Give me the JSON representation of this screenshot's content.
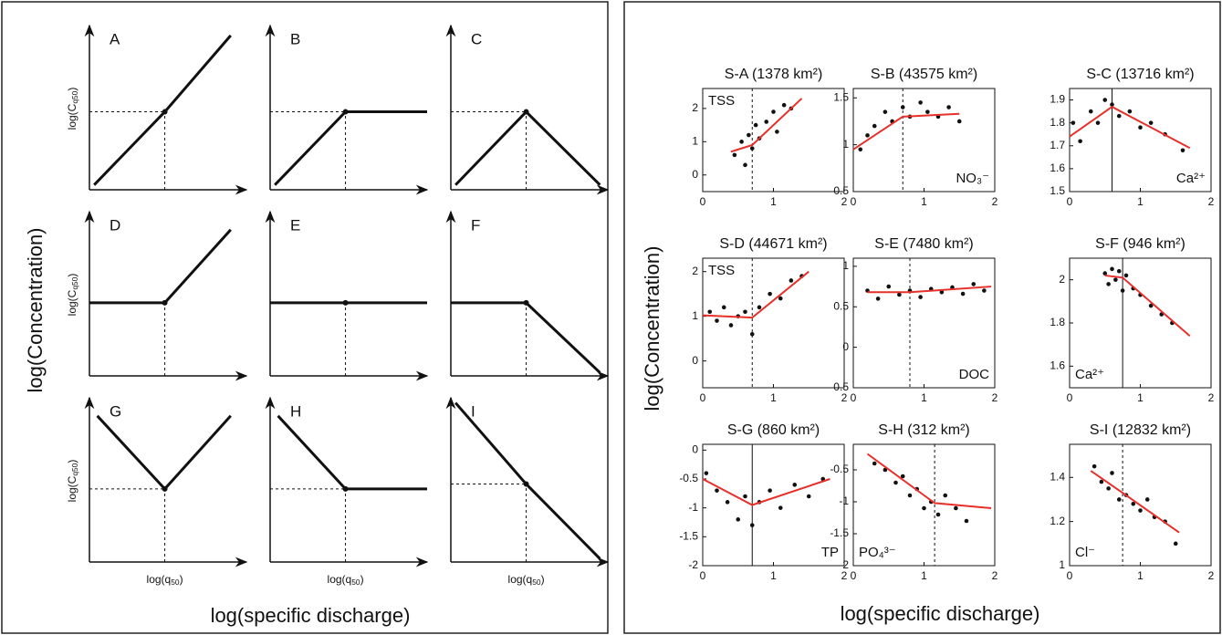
{
  "figure": {
    "left_ylabel": "log(Concentration)",
    "left_xlabel": "log(specific discharge)",
    "right_ylabel": "log(Concentration)",
    "right_xlabel": "log(specific discharge)"
  },
  "chart_data": [
    {
      "type": "concept",
      "title": "A",
      "x": [
        0.03,
        0.48,
        0.9
      ],
      "values": [
        0.03,
        0.48,
        0.95
      ],
      "xlim": [
        0,
        1
      ],
      "ylim": [
        0,
        1
      ],
      "hguide": true,
      "ylabel": [
        "log(C",
        "q50",
        ")"
      ]
    },
    {
      "type": "concept",
      "title": "B",
      "x": [
        0.03,
        0.48,
        1
      ],
      "values": [
        0.03,
        0.48,
        0.48
      ],
      "xlim": [
        0,
        1
      ],
      "ylim": [
        0,
        1
      ],
      "hguide": true
    },
    {
      "type": "concept",
      "title": "C",
      "x": [
        0.03,
        0.48,
        0.95
      ],
      "values": [
        0.03,
        0.48,
        0.03
      ],
      "xlim": [
        0,
        1
      ],
      "ylim": [
        0,
        1
      ],
      "hguide": true
    },
    {
      "type": "concept",
      "title": "D",
      "x": [
        0,
        0.48,
        0.9
      ],
      "values": [
        0.45,
        0.45,
        0.9
      ],
      "xlim": [
        0,
        1
      ],
      "ylim": [
        0,
        1
      ],
      "hguide": false,
      "ylabel": [
        "log(C",
        "q50",
        ")"
      ]
    },
    {
      "type": "concept",
      "title": "E",
      "x": [
        0,
        0.48,
        1
      ],
      "values": [
        0.45,
        0.45,
        0.45
      ],
      "xlim": [
        0,
        1
      ],
      "ylim": [
        0,
        1
      ],
      "hguide": false
    },
    {
      "type": "concept",
      "title": "F",
      "x": [
        0,
        0.48,
        0.95
      ],
      "values": [
        0.45,
        0.45,
        0.02
      ],
      "xlim": [
        0,
        1
      ],
      "ylim": [
        0,
        1
      ],
      "hguide": false
    },
    {
      "type": "concept",
      "title": "G",
      "x": [
        0.05,
        0.48,
        0.9
      ],
      "values": [
        0.9,
        0.45,
        0.9
      ],
      "xlim": [
        0,
        1
      ],
      "ylim": [
        0,
        1
      ],
      "hguide": true,
      "ylabel": [
        "log(C",
        "q50",
        ")"
      ],
      "xlabel": [
        "log(q",
        "50",
        ")"
      ]
    },
    {
      "type": "concept",
      "title": "H",
      "x": [
        0.05,
        0.48,
        1
      ],
      "values": [
        0.9,
        0.45,
        0.45
      ],
      "xlim": [
        0,
        1
      ],
      "ylim": [
        0,
        1
      ],
      "hguide": true,
      "xlabel": [
        "log(q",
        "50",
        ")"
      ]
    },
    {
      "type": "concept",
      "title": "I",
      "x": [
        0.03,
        0.48,
        0.95
      ],
      "values": [
        0.98,
        0.48,
        0.02
      ],
      "xlim": [
        0,
        1
      ],
      "ylim": [
        0,
        1
      ],
      "hguide": true,
      "xlabel": [
        "log(q",
        "50",
        ")"
      ]
    },
    {
      "type": "scatter",
      "title": "S-A (1378 km²)",
      "annotation": "TSS",
      "annotation_corner": "top-left",
      "x": [
        0.45,
        0.55,
        0.6,
        0.65,
        0.7,
        0.75,
        0.8,
        0.9,
        1.0,
        1.05,
        1.15,
        1.25
      ],
      "values": [
        0.6,
        1.0,
        0.3,
        1.2,
        0.8,
        1.5,
        1.1,
        1.6,
        1.9,
        1.3,
        2.1,
        2.0
      ],
      "fit_x": [
        0.4,
        0.7,
        1.4
      ],
      "fit_values": [
        0.7,
        0.9,
        2.3
      ],
      "threshold": 0.7,
      "threshold_style": "dashed",
      "xlim": [
        0,
        2
      ],
      "ylim": [
        -0.5,
        2.6
      ],
      "xticks": [
        0,
        1,
        2
      ],
      "yticks": [
        0,
        1,
        2
      ]
    },
    {
      "type": "scatter",
      "title": "S-B (43575 km²)",
      "annotation": "NO₃⁻",
      "annotation_corner": "bottom-right",
      "x": [
        0.1,
        0.2,
        0.3,
        0.45,
        0.55,
        0.7,
        0.8,
        0.95,
        1.05,
        1.2,
        1.35,
        1.5
      ],
      "values": [
        0.95,
        1.1,
        1.2,
        1.35,
        1.25,
        1.4,
        1.3,
        1.45,
        1.35,
        1.3,
        1.4,
        1.25
      ],
      "fit_x": [
        0,
        0.7,
        1.5
      ],
      "fit_values": [
        0.95,
        1.3,
        1.33
      ],
      "threshold": 0.7,
      "threshold_style": "dashed",
      "xlim": [
        0,
        2
      ],
      "ylim": [
        0.5,
        1.6
      ],
      "xticks": [
        0,
        1,
        2
      ],
      "yticks": [
        0.5,
        1,
        1.5
      ]
    },
    {
      "type": "scatter",
      "title": "S-C (13716 km²)",
      "annotation": "Ca²⁺",
      "annotation_corner": "bottom-right",
      "x": [
        0.05,
        0.15,
        0.3,
        0.4,
        0.5,
        0.6,
        0.7,
        0.85,
        1.0,
        1.15,
        1.35,
        1.6
      ],
      "values": [
        1.8,
        1.72,
        1.85,
        1.8,
        1.9,
        1.88,
        1.83,
        1.85,
        1.78,
        1.8,
        1.75,
        1.68
      ],
      "fit_x": [
        0,
        0.6,
        1.7
      ],
      "fit_values": [
        1.74,
        1.87,
        1.69
      ],
      "threshold": 0.6,
      "threshold_style": "solid",
      "xlim": [
        0,
        2
      ],
      "ylim": [
        1.5,
        1.95
      ],
      "xticks": [
        0,
        1,
        2
      ],
      "yticks": [
        1.5,
        1.6,
        1.7,
        1.8,
        1.9
      ]
    },
    {
      "type": "scatter",
      "title": "S-D (44671 km²)",
      "annotation": "TSS",
      "annotation_corner": "top-left",
      "x": [
        0.1,
        0.2,
        0.3,
        0.4,
        0.5,
        0.6,
        0.7,
        0.8,
        0.95,
        1.1,
        1.25,
        1.4
      ],
      "values": [
        1.1,
        0.9,
        1.2,
        0.8,
        1.0,
        1.1,
        0.6,
        1.2,
        1.5,
        1.4,
        1.8,
        1.9
      ],
      "fit_x": [
        0,
        0.7,
        1.5
      ],
      "fit_values": [
        1.02,
        0.97,
        2.0
      ],
      "threshold": 0.7,
      "threshold_style": "dashed",
      "xlim": [
        0,
        2
      ],
      "ylim": [
        -0.6,
        2.3
      ],
      "xticks": [
        0,
        1,
        2
      ],
      "yticks": [
        0,
        1,
        2
      ]
    },
    {
      "type": "scatter",
      "title": "S-E (7480 km²)",
      "annotation": "DOC",
      "annotation_corner": "bottom-right",
      "x": [
        0.2,
        0.35,
        0.5,
        0.65,
        0.8,
        0.95,
        1.1,
        1.25,
        1.4,
        1.55,
        1.7,
        1.85
      ],
      "values": [
        0.7,
        0.6,
        0.75,
        0.65,
        0.7,
        0.62,
        0.72,
        0.68,
        0.74,
        0.66,
        0.78,
        0.7
      ],
      "fit_x": [
        0.2,
        0.8,
        1.95
      ],
      "fit_values": [
        0.68,
        0.68,
        0.75
      ],
      "threshold": 0.8,
      "threshold_style": "dashed",
      "xlim": [
        0,
        2
      ],
      "ylim": [
        -0.5,
        1.1
      ],
      "xticks": [
        0,
        1,
        2
      ],
      "yticks": [
        -0.5,
        0,
        0.5,
        1
      ]
    },
    {
      "type": "scatter",
      "title": "S-F (946 km²)",
      "annotation": "Ca²⁺",
      "annotation_corner": "bottom-left",
      "x": [
        0.5,
        0.55,
        0.6,
        0.65,
        0.7,
        0.75,
        0.8,
        0.9,
        1.0,
        1.15,
        1.3,
        1.45
      ],
      "values": [
        2.03,
        1.98,
        2.05,
        2.0,
        2.04,
        1.95,
        2.02,
        1.96,
        1.93,
        1.88,
        1.84,
        1.8
      ],
      "fit_x": [
        0.5,
        0.75,
        1.7
      ],
      "fit_values": [
        2.02,
        2.01,
        1.74
      ],
      "threshold": 0.75,
      "threshold_style": "solid",
      "xlim": [
        0,
        2
      ],
      "ylim": [
        1.5,
        2.1
      ],
      "xticks": [
        0,
        1,
        2
      ],
      "yticks": [
        1.6,
        1.8,
        2
      ]
    },
    {
      "type": "scatter",
      "title": "S-G (860 km²)",
      "annotation": "TP",
      "annotation_corner": "bottom-right",
      "x": [
        0.05,
        0.2,
        0.35,
        0.5,
        0.6,
        0.7,
        0.8,
        0.95,
        1.1,
        1.3,
        1.5,
        1.7
      ],
      "values": [
        -0.4,
        -0.7,
        -0.9,
        -1.2,
        -0.8,
        -1.3,
        -0.9,
        -0.7,
        -1.0,
        -0.6,
        -0.8,
        -0.5
      ],
      "fit_x": [
        0,
        0.7,
        1.8
      ],
      "fit_values": [
        -0.5,
        -0.95,
        -0.5
      ],
      "threshold": 0.7,
      "threshold_style": "solid",
      "xlim": [
        0,
        2
      ],
      "ylim": [
        -2,
        0.1
      ],
      "xticks": [
        0,
        1,
        2
      ],
      "yticks": [
        -2,
        -1.5,
        -1,
        -0.5,
        0
      ]
    },
    {
      "type": "scatter",
      "title": "S-H (312 km²)",
      "annotation": "PO₄³⁻",
      "annotation_corner": "bottom-left",
      "x": [
        0.3,
        0.45,
        0.6,
        0.7,
        0.8,
        0.9,
        1.0,
        1.1,
        1.2,
        1.3,
        1.45,
        1.6
      ],
      "values": [
        -0.4,
        -0.5,
        -0.7,
        -0.6,
        -0.9,
        -0.8,
        -1.1,
        -1.0,
        -1.2,
        -0.9,
        -1.1,
        -1.3
      ],
      "fit_x": [
        0.2,
        1.15,
        1.95
      ],
      "fit_values": [
        -0.25,
        -1.02,
        -1.1
      ],
      "threshold": 1.15,
      "threshold_style": "dashed",
      "xlim": [
        0,
        2
      ],
      "ylim": [
        -2,
        -0.1
      ],
      "xticks": [
        0,
        1,
        2
      ],
      "yticks": [
        -2,
        -1.5,
        -1,
        -0.5
      ]
    },
    {
      "type": "scatter",
      "title": "S-I (12832 km²)",
      "annotation": "Cl⁻",
      "annotation_corner": "bottom-left",
      "x": [
        0.35,
        0.45,
        0.55,
        0.6,
        0.7,
        0.8,
        0.9,
        1.0,
        1.1,
        1.2,
        1.35,
        1.5
      ],
      "values": [
        1.45,
        1.38,
        1.35,
        1.42,
        1.3,
        1.32,
        1.28,
        1.25,
        1.3,
        1.22,
        1.2,
        1.1
      ],
      "fit_x": [
        0.3,
        0.75,
        1.55
      ],
      "fit_values": [
        1.43,
        1.33,
        1.15
      ],
      "threshold": 0.75,
      "threshold_style": "dashed",
      "xlim": [
        0,
        2
      ],
      "ylim": [
        1,
        1.55
      ],
      "xticks": [
        0,
        1,
        2
      ],
      "yticks": [
        1,
        1.2,
        1.4
      ]
    }
  ]
}
